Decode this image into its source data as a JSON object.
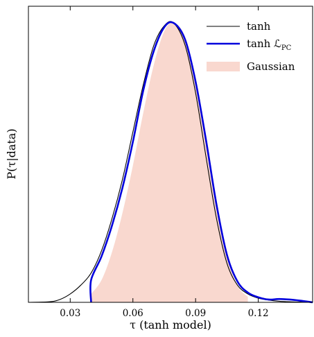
{
  "chart_data": {
    "type": "area",
    "xlabel": "τ (tanh model)",
    "ylabel": "P(τ|data)",
    "xlim": [
      0.01,
      0.146
    ],
    "ylim": [
      0,
      1.06
    ],
    "xticks": [
      "0.03",
      "0.06",
      "0.09",
      "0.12"
    ],
    "xtick_values": [
      0.03,
      0.06,
      0.09,
      0.12
    ],
    "grid": false,
    "legend": "top-right",
    "series": [
      {
        "name": "tanh",
        "style": "line",
        "color": "#000000",
        "x": [
          0.01,
          0.02,
          0.025,
          0.03,
          0.035,
          0.04,
          0.045,
          0.05,
          0.055,
          0.06,
          0.065,
          0.07,
          0.075,
          0.0795,
          0.085,
          0.09,
          0.095,
          0.1,
          0.105,
          0.11,
          0.115,
          0.12,
          0.125,
          0.13,
          0.135,
          0.14,
          0.146
        ],
        "y": [
          0.0,
          0.002,
          0.01,
          0.03,
          0.061,
          0.105,
          0.185,
          0.3,
          0.44,
          0.61,
          0.78,
          0.92,
          0.99,
          1.0,
          0.92,
          0.75,
          0.52,
          0.3,
          0.14,
          0.062,
          0.03,
          0.015,
          0.008,
          0.004,
          0.002,
          0.001,
          0.0
        ]
      },
      {
        "name": "tanh ℒ_PC",
        "style": "line",
        "color": "#0000dd",
        "x": [
          0.04,
          0.04,
          0.045,
          0.05,
          0.055,
          0.06,
          0.065,
          0.07,
          0.075,
          0.0795,
          0.085,
          0.09,
          0.095,
          0.1,
          0.105,
          0.11,
          0.115,
          0.12,
          0.125,
          0.13,
          0.135,
          0.14,
          0.146
        ],
        "y": [
          0.0,
          0.08,
          0.165,
          0.275,
          0.41,
          0.575,
          0.76,
          0.9,
          0.985,
          1.0,
          0.94,
          0.79,
          0.58,
          0.35,
          0.17,
          0.075,
          0.035,
          0.018,
          0.01,
          0.012,
          0.01,
          0.006,
          0.0
        ]
      },
      {
        "name": "Gaussian",
        "style": "fill",
        "color": "#f9d8cf",
        "x": [
          0.04,
          0.045,
          0.05,
          0.055,
          0.06,
          0.065,
          0.07,
          0.075,
          0.0795,
          0.085,
          0.09,
          0.095,
          0.1,
          0.105,
          0.11,
          0.115
        ],
        "y": [
          0.03,
          0.08,
          0.18,
          0.32,
          0.49,
          0.68,
          0.85,
          0.97,
          1.0,
          0.95,
          0.79,
          0.57,
          0.35,
          0.17,
          0.06,
          0.02
        ]
      }
    ]
  },
  "legend": {
    "items": [
      {
        "label": "tanh",
        "sub": "",
        "color": "#000000",
        "kind": "line"
      },
      {
        "label": "tanh ℒ",
        "sub": "PC",
        "color": "#0000dd",
        "kind": "line-thick"
      },
      {
        "label": "Gaussian",
        "sub": "",
        "color": "#f9d8cf",
        "kind": "patch"
      }
    ]
  }
}
